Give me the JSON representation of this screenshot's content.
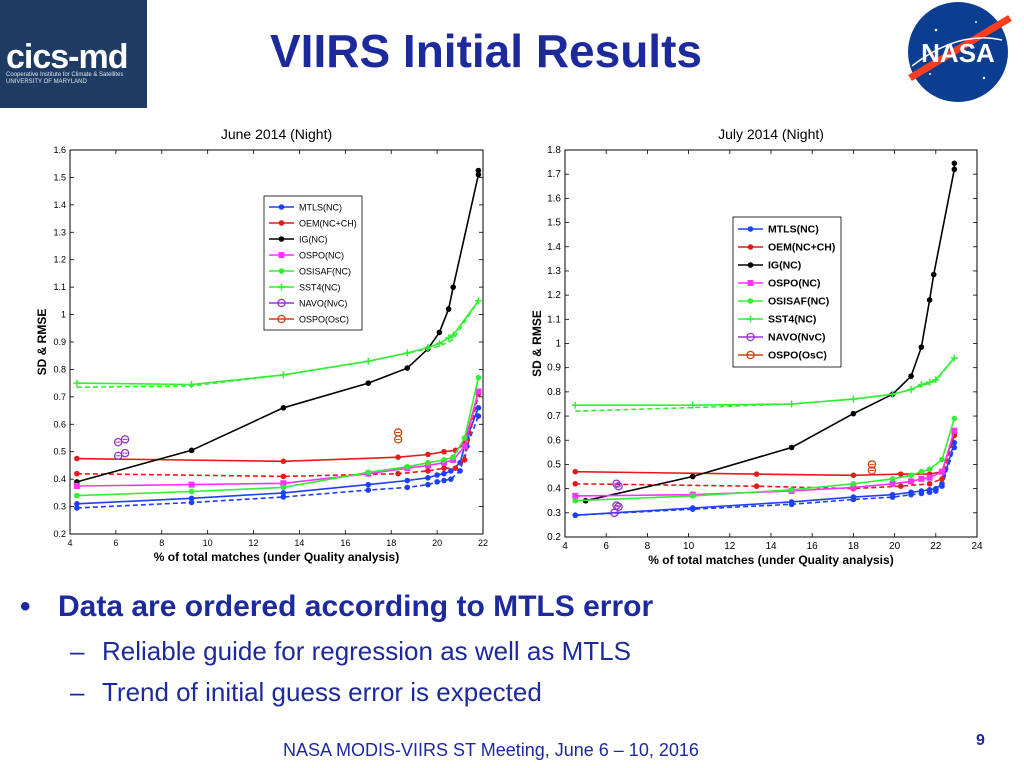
{
  "header": {
    "title": "VIIRS Initial Results",
    "logo_left_text": "cics-md",
    "logo_left_subtext": "Cooperative Institute for Climate & Satellites UNIVERSITY OF MARYLAND",
    "logo_right_text": "NASA"
  },
  "colors": {
    "title": "#1c2a9c",
    "MTLS": "#1f3fff",
    "OEM": "#e8191d",
    "IG": "#000000",
    "OSPO": "#ff33ff",
    "OSISAF": "#33ee33",
    "SST4": "#33ee33",
    "NAVO": "#9933cc",
    "OSPO_OsC": "#cc4411"
  },
  "chart_data": [
    {
      "type": "line",
      "title": "June 2014 (Night)",
      "xlabel": "% of total matches (under Quality analysis)",
      "ylabel": "SD & RMSE",
      "xlim": [
        4,
        22
      ],
      "ylim": [
        0.2,
        1.6
      ],
      "xticks": [
        "4",
        "6",
        "8",
        "10",
        "12",
        "14",
        "16",
        "18",
        "20",
        "22"
      ],
      "yticks": [
        "0.2",
        "0.3",
        "0.4",
        "0.5",
        "0.6",
        "0.7",
        "0.8",
        "0.9",
        "1",
        "1.1",
        "1.2",
        "1.3",
        "1.4",
        "1.5",
        "1.6"
      ],
      "legend_position": "top-center",
      "series": [
        {
          "name": "MTLS(NC)",
          "color": "#1f3fff",
          "marker": "dot",
          "points": [
            [
              4.3,
              0.31
            ],
            [
              9.3,
              0.33
            ],
            [
              13.3,
              0.35
            ],
            [
              17.0,
              0.38
            ],
            [
              18.7,
              0.395
            ],
            [
              19.6,
              0.405
            ],
            [
              20.0,
              0.415
            ],
            [
              20.3,
              0.42
            ],
            [
              20.6,
              0.43
            ],
            [
              21.0,
              0.46
            ],
            [
              21.3,
              0.55
            ],
            [
              21.8,
              0.66
            ]
          ],
          "dashed_points": [
            [
              4.3,
              0.295
            ],
            [
              9.3,
              0.315
            ],
            [
              13.3,
              0.335
            ],
            [
              17.0,
              0.36
            ],
            [
              18.7,
              0.37
            ],
            [
              19.6,
              0.38
            ],
            [
              20.0,
              0.39
            ],
            [
              20.3,
              0.395
            ],
            [
              20.6,
              0.4
            ],
            [
              21.0,
              0.43
            ],
            [
              21.3,
              0.52
            ],
            [
              21.8,
              0.63
            ]
          ]
        },
        {
          "name": "OEM(NC+CH)",
          "color": "#e8191d",
          "marker": "dot",
          "points": [
            [
              4.3,
              0.475
            ],
            [
              13.3,
              0.465
            ],
            [
              18.3,
              0.48
            ],
            [
              19.6,
              0.49
            ],
            [
              20.3,
              0.5
            ],
            [
              20.8,
              0.505
            ],
            [
              21.2,
              0.53
            ],
            [
              21.8,
              0.72
            ]
          ],
          "dashed_points": [
            [
              4.3,
              0.42
            ],
            [
              13.3,
              0.41
            ],
            [
              18.3,
              0.42
            ],
            [
              19.6,
              0.43
            ],
            [
              20.3,
              0.44
            ],
            [
              20.8,
              0.44
            ],
            [
              21.2,
              0.47
            ],
            [
              21.8,
              0.71
            ]
          ]
        },
        {
          "name": "IG(NC)",
          "color": "#000000",
          "marker": "dot",
          "points": [
            [
              4.3,
              0.39
            ],
            [
              9.3,
              0.505
            ],
            [
              13.3,
              0.66
            ],
            [
              17.0,
              0.75
            ],
            [
              18.7,
              0.805
            ],
            [
              19.6,
              0.875
            ],
            [
              20.1,
              0.935
            ],
            [
              20.5,
              1.02
            ],
            [
              20.7,
              1.1
            ],
            [
              21.8,
              1.51
            ],
            [
              21.8,
              1.525
            ]
          ]
        },
        {
          "name": "OSPO(NC)",
          "color": "#ff33ff",
          "marker": "square",
          "points": [
            [
              4.3,
              0.375
            ],
            [
              9.3,
              0.38
            ],
            [
              13.3,
              0.385
            ],
            [
              17.0,
              0.42
            ],
            [
              18.7,
              0.44
            ],
            [
              19.6,
              0.45
            ],
            [
              20.3,
              0.46
            ],
            [
              20.7,
              0.47
            ],
            [
              21.2,
              0.52
            ],
            [
              21.8,
              0.72
            ]
          ]
        },
        {
          "name": "OSISAF(NC)",
          "color": "#33ee33",
          "marker": "dot",
          "points": [
            [
              4.3,
              0.34
            ],
            [
              9.3,
              0.355
            ],
            [
              13.3,
              0.37
            ],
            [
              17.0,
              0.425
            ],
            [
              18.7,
              0.445
            ],
            [
              19.6,
              0.46
            ],
            [
              20.3,
              0.47
            ],
            [
              20.7,
              0.48
            ],
            [
              21.2,
              0.55
            ],
            [
              21.8,
              0.77
            ]
          ]
        },
        {
          "name": "SST4(NC)",
          "color": "#33ee33",
          "marker": "plus",
          "points": [
            [
              4.3,
              0.75
            ],
            [
              9.3,
              0.745
            ],
            [
              13.3,
              0.78
            ],
            [
              17.0,
              0.83
            ],
            [
              18.7,
              0.86
            ],
            [
              19.6,
              0.88
            ],
            [
              20.1,
              0.895
            ],
            [
              20.5,
              0.915
            ],
            [
              20.7,
              0.925
            ],
            [
              21.8,
              1.05
            ]
          ],
          "dashed_points": [
            [
              4.3,
              0.735
            ],
            [
              9.3,
              0.74
            ],
            [
              13.3,
              0.78
            ],
            [
              17.0,
              0.83
            ],
            [
              18.7,
              0.86
            ],
            [
              19.6,
              0.875
            ],
            [
              20.1,
              0.885
            ],
            [
              20.5,
              0.9
            ],
            [
              20.7,
              0.91
            ],
            [
              21.8,
              1.05
            ]
          ]
        },
        {
          "name": "NAVO(NvC)",
          "color": "#9933cc",
          "marker": "circle",
          "points": [
            [
              6.1,
              0.535
            ],
            [
              6.4,
              0.545
            ],
            [
              6.1,
              0.485
            ],
            [
              6.4,
              0.495
            ]
          ]
        },
        {
          "name": "OSPO(OsC)",
          "color": "#cc4411",
          "marker": "circle",
          "points": [
            [
              18.3,
              0.57
            ],
            [
              18.3,
              0.545
            ]
          ]
        }
      ]
    },
    {
      "type": "line",
      "title": "July 2014 (Night)",
      "xlabel": "% of total matches (under Quality analysis)",
      "ylabel": "SD & RMSE",
      "xlim": [
        4,
        24
      ],
      "ylim": [
        0.2,
        1.8
      ],
      "xticks": [
        "4",
        "6",
        "8",
        "10",
        "12",
        "14",
        "16",
        "18",
        "20",
        "22",
        "24"
      ],
      "yticks": [
        "0.2",
        "0.3",
        "0.4",
        "0.5",
        "0.6",
        "0.7",
        "0.8",
        "0.9",
        "1",
        "1.1",
        "1.2",
        "1.3",
        "1.4",
        "1.5",
        "1.6",
        "1.7",
        "1.8"
      ],
      "legend_position": "top-right",
      "series": [
        {
          "name": "MTLS(NC)",
          "color": "#1f3fff",
          "marker": "dot",
          "points": [
            [
              4.5,
              0.29
            ],
            [
              10.2,
              0.32
            ],
            [
              15.0,
              0.345
            ],
            [
              18.0,
              0.365
            ],
            [
              19.9,
              0.375
            ],
            [
              20.8,
              0.385
            ],
            [
              21.3,
              0.39
            ],
            [
              21.7,
              0.395
            ],
            [
              22.0,
              0.4
            ],
            [
              22.3,
              0.42
            ],
            [
              22.9,
              0.59
            ]
          ],
          "dashed_points": [
            [
              4.5,
              0.29
            ],
            [
              10.2,
              0.315
            ],
            [
              15.0,
              0.335
            ],
            [
              18.0,
              0.355
            ],
            [
              19.9,
              0.365
            ],
            [
              20.8,
              0.375
            ],
            [
              21.3,
              0.38
            ],
            [
              21.7,
              0.385
            ],
            [
              22.0,
              0.39
            ],
            [
              22.3,
              0.41
            ],
            [
              22.9,
              0.57
            ]
          ]
        },
        {
          "name": "OEM(NC+CH)",
          "color": "#e8191d",
          "marker": "dot",
          "points": [
            [
              4.5,
              0.47
            ],
            [
              13.3,
              0.46
            ],
            [
              18.0,
              0.455
            ],
            [
              20.3,
              0.46
            ],
            [
              21.7,
              0.46
            ],
            [
              22.3,
              0.47
            ],
            [
              22.9,
              0.63
            ]
          ],
          "dashed_points": [
            [
              4.5,
              0.42
            ],
            [
              13.3,
              0.41
            ],
            [
              18.0,
              0.4
            ],
            [
              20.3,
              0.41
            ],
            [
              21.7,
              0.42
            ],
            [
              22.3,
              0.44
            ],
            [
              22.9,
              0.62
            ]
          ]
        },
        {
          "name": "IG(NC)",
          "color": "#000000",
          "marker": "dot",
          "points": [
            [
              5.0,
              0.35
            ],
            [
              10.2,
              0.45
            ],
            [
              15.0,
              0.57
            ],
            [
              18.0,
              0.71
            ],
            [
              19.9,
              0.79
            ],
            [
              20.8,
              0.865
            ],
            [
              21.3,
              0.985
            ],
            [
              21.7,
              1.18
            ],
            [
              21.9,
              1.285
            ],
            [
              22.9,
              1.72
            ],
            [
              22.9,
              1.745
            ]
          ]
        },
        {
          "name": "OSPO(NC)",
          "color": "#ff33ff",
          "marker": "square",
          "points": [
            [
              4.5,
              0.37
            ],
            [
              10.2,
              0.375
            ],
            [
              15.0,
              0.39
            ],
            [
              18.0,
              0.405
            ],
            [
              19.9,
              0.42
            ],
            [
              20.8,
              0.43
            ],
            [
              21.3,
              0.44
            ],
            [
              21.7,
              0.445
            ],
            [
              22.3,
              0.47
            ],
            [
              22.9,
              0.64
            ]
          ]
        },
        {
          "name": "OSISAF(NC)",
          "color": "#33ee33",
          "marker": "dot",
          "points": [
            [
              4.5,
              0.35
            ],
            [
              10.2,
              0.37
            ],
            [
              15.0,
              0.395
            ],
            [
              18.0,
              0.42
            ],
            [
              19.9,
              0.44
            ],
            [
              20.8,
              0.455
            ],
            [
              21.3,
              0.47
            ],
            [
              21.7,
              0.48
            ],
            [
              22.3,
              0.52
            ],
            [
              22.9,
              0.69
            ]
          ]
        },
        {
          "name": "SST4(NC)",
          "color": "#33ee33",
          "marker": "plus",
          "points": [
            [
              4.5,
              0.745
            ],
            [
              10.2,
              0.745
            ],
            [
              15.0,
              0.75
            ],
            [
              18.0,
              0.77
            ],
            [
              19.9,
              0.79
            ],
            [
              20.8,
              0.81
            ],
            [
              21.3,
              0.83
            ],
            [
              21.7,
              0.84
            ],
            [
              22.0,
              0.85
            ],
            [
              22.9,
              0.94
            ]
          ],
          "dashed_points": [
            [
              4.5,
              0.72
            ],
            [
              10.2,
              0.735
            ],
            [
              15.0,
              0.75
            ],
            [
              18.0,
              0.77
            ],
            [
              19.9,
              0.79
            ],
            [
              20.8,
              0.81
            ],
            [
              21.3,
              0.825
            ],
            [
              21.7,
              0.835
            ],
            [
              22.0,
              0.845
            ],
            [
              22.9,
              0.94
            ]
          ]
        },
        {
          "name": "NAVO(NvC)",
          "color": "#9933cc",
          "marker": "circle",
          "points": [
            [
              6.5,
              0.42
            ],
            [
              6.6,
              0.41
            ],
            [
              6.5,
              0.33
            ],
            [
              6.6,
              0.325
            ],
            [
              6.4,
              0.3
            ]
          ]
        },
        {
          "name": "OSPO(OsC)",
          "color": "#cc4411",
          "marker": "circle",
          "points": [
            [
              18.9,
              0.5
            ],
            [
              18.9,
              0.475
            ]
          ]
        }
      ]
    }
  ],
  "bullets": {
    "main": "Data are ordered according to MTLS error",
    "bullet_symbol": "•",
    "dash_symbol": "–",
    "sub1": "Reliable guide for regression as well as MTLS",
    "sub2": "Trend of initial guess error is expected"
  },
  "footer": {
    "meeting": "NASA MODIS-VIIRS ST Meeting, June 6 – 10, 2016",
    "page_number": "9"
  }
}
